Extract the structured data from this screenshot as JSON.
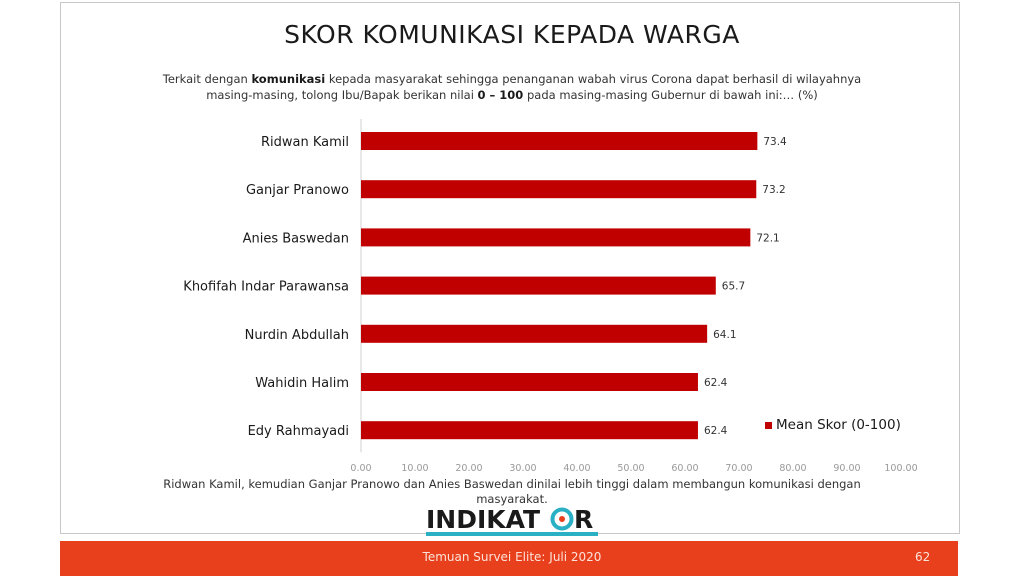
{
  "slide": {
    "title": "SKOR KOMUNIKASI KEPADA WARGA",
    "question": {
      "part1": "Terkait  dengan ",
      "bold1": "komunikasi",
      "part2": " kepada masyarakat sehingga penanganan wabah virus Corona dapat berhasil di wilayahnya masing-masing, tolong Ibu/Bapak berikan nilai ",
      "bold2": "0 – 100",
      "part3": " pada masing-masing Gubernur di bawah ini:… (%)"
    },
    "conclusion": "Ridwan Kamil, kemudian Ganjar Pranowo dan Anies Baswedan dinilai lebih tinggi dalam membangun komunikasi dengan masyarakat.",
    "logo_text": "INDIKATOR",
    "footer": "Temuan Survei Elite: Juli 2020",
    "page_number": "62"
  },
  "colors": {
    "bar": "#c00000",
    "footer": "#e8401c",
    "logo_accent": "#2ab0c4"
  },
  "chart_data": {
    "type": "bar",
    "orientation": "horizontal",
    "categories": [
      "Ridwan Kamil",
      "Ganjar Pranowo",
      "Anies Baswedan",
      "Khofifah Indar Parawansa",
      "Nurdin Abdullah",
      "Wahidin Halim",
      "Edy Rahmayadi"
    ],
    "series": [
      {
        "name": "Mean Skor (0-100)",
        "values": [
          73.4,
          73.2,
          72.1,
          65.7,
          64.1,
          62.4,
          62.4
        ]
      }
    ],
    "value_labels": [
      "73.4",
      "73.2",
      "72.1",
      "65.7",
      "64.1",
      "62.4",
      "62.4"
    ],
    "x_ticks": [
      "0.00",
      "10.00",
      "20.00",
      "30.00",
      "40.00",
      "50.00",
      "60.00",
      "70.00",
      "80.00",
      "90.00",
      "100.00"
    ],
    "xlim": [
      0,
      100
    ],
    "grid": false,
    "legend_position": "bottom-right"
  }
}
